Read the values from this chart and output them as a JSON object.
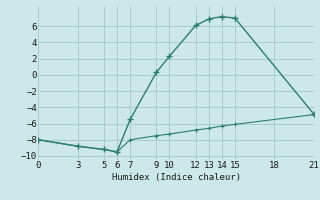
{
  "xlabel": "Humidex (Indice chaleur)",
  "bg_color": "#cce8e8",
  "grid_color": "#aacccc",
  "line_color": "#2e7d6e",
  "line1_x": [
    0,
    3,
    5,
    6,
    7,
    9,
    10,
    12,
    13,
    14,
    15,
    21
  ],
  "line1_y": [
    -8,
    -8.8,
    -9.2,
    -9.5,
    -5.5,
    0.3,
    2.3,
    6.1,
    6.9,
    7.2,
    7.0,
    -4.8
  ],
  "line2_x": [
    0,
    3,
    5,
    6,
    7,
    9,
    10,
    12,
    13,
    14,
    15,
    21
  ],
  "line2_y": [
    -8,
    -8.8,
    -9.2,
    -9.5,
    -8.0,
    -7.5,
    -7.3,
    -6.8,
    -6.6,
    -6.3,
    -6.1,
    -4.9
  ],
  "xlim": [
    0,
    21
  ],
  "ylim": [
    -10.5,
    8.5
  ],
  "xticks": [
    0,
    3,
    5,
    6,
    7,
    9,
    10,
    12,
    13,
    14,
    15,
    18,
    21
  ],
  "yticks": [
    -10,
    -8,
    -6,
    -4,
    -2,
    0,
    2,
    4,
    6
  ],
  "xlabel_fontsize": 6.5,
  "tick_fontsize": 6.5
}
